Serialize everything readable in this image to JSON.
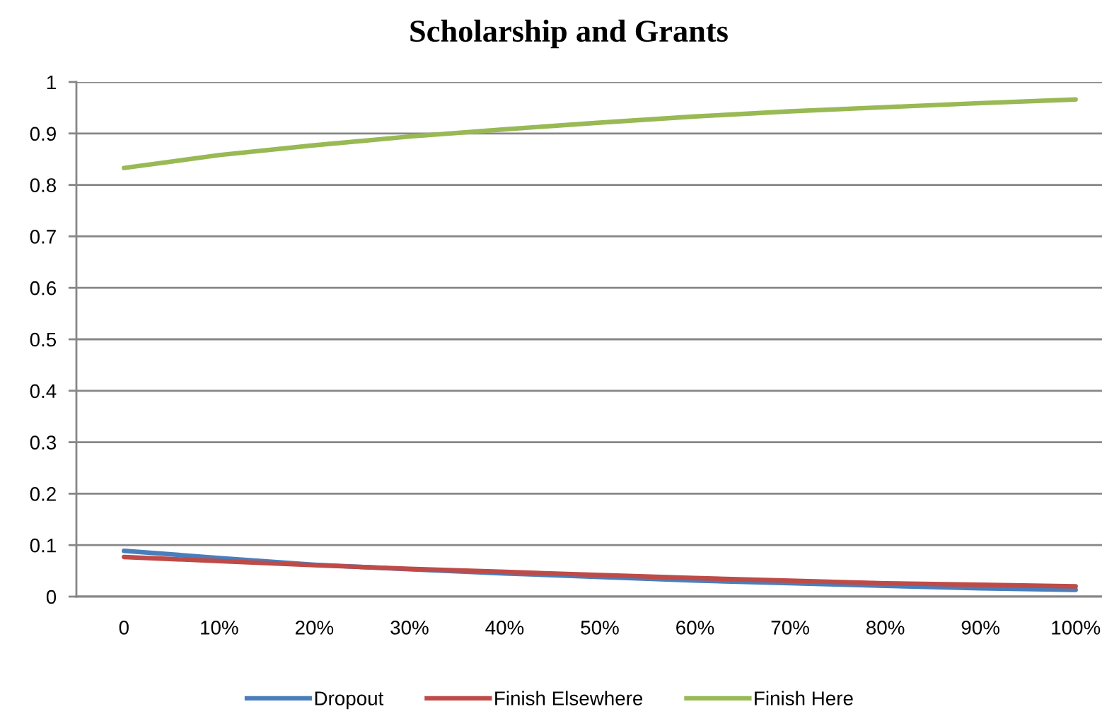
{
  "chart_data": {
    "type": "line",
    "title": "Scholarship and Grants",
    "categories": [
      "0",
      "10%",
      "20%",
      "30%",
      "40%",
      "50%",
      "60%",
      "70%",
      "80%",
      "90%",
      "100%"
    ],
    "series": [
      {
        "name": "Dropout",
        "color": "#4a7ebb",
        "values": [
          0.089,
          0.075,
          0.062,
          0.053,
          0.045,
          0.038,
          0.031,
          0.026,
          0.021,
          0.016,
          0.013
        ]
      },
      {
        "name": "Finish Elsewhere",
        "color": "#be4b48",
        "values": [
          0.077,
          0.069,
          0.061,
          0.054,
          0.048,
          0.042,
          0.036,
          0.031,
          0.026,
          0.023,
          0.02
        ]
      },
      {
        "name": "Finish Here",
        "color": "#98b954",
        "values": [
          0.833,
          0.858,
          0.877,
          0.894,
          0.908,
          0.921,
          0.933,
          0.943,
          0.951,
          0.959,
          0.966
        ]
      }
    ],
    "ylim": [
      0,
      1
    ],
    "yticks": [
      0,
      0.1,
      0.2,
      0.3,
      0.4,
      0.5,
      0.6,
      0.7,
      0.8,
      0.9,
      1
    ],
    "grid": "y",
    "legend": "bottom"
  }
}
